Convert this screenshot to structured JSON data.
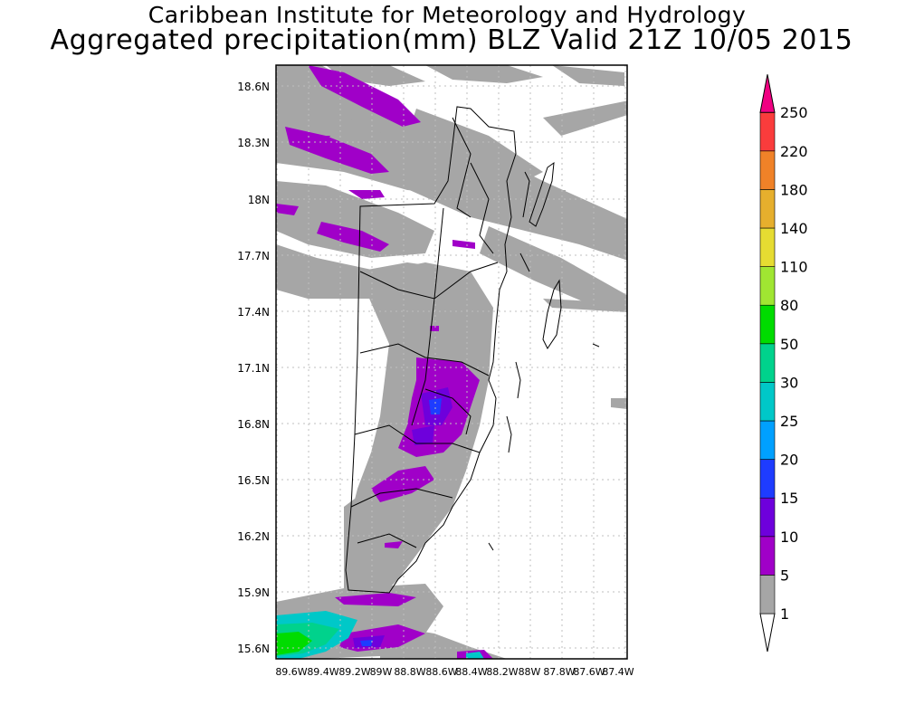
{
  "titles": {
    "line1": "Caribbean Institute for Meteorology and Hydrology",
    "line2": "Aggregated precipitation(mm) BLZ Valid 21Z 10/05 2015"
  },
  "map": {
    "lat_labels": [
      "18.6N",
      "18.3N",
      "18N",
      "17.7N",
      "17.4N",
      "17.1N",
      "16.8N",
      "16.5N",
      "16.2N",
      "15.9N",
      "15.6N"
    ],
    "lon_labels": [
      "89.6W",
      "89.4W",
      "89.2W",
      "89W",
      "88.8W",
      "88.6W",
      "88.4W",
      "88.2W",
      "88W",
      "87.8W",
      "87.6W",
      "87.4W"
    ]
  },
  "legend": {
    "labels": [
      "1",
      "5",
      "10",
      "15",
      "20",
      "25",
      "30",
      "50",
      "80",
      "110",
      "140",
      "180",
      "220",
      "250"
    ],
    "colors": [
      "#a6a6a6",
      "#a000c8",
      "#6e00dc",
      "#1e3cff",
      "#00a0ff",
      "#00c8c8",
      "#00d28c",
      "#00dc00",
      "#a0e632",
      "#e6dc32",
      "#e6af2d",
      "#f08228",
      "#fa3c3c",
      "#f00082"
    ]
  }
}
